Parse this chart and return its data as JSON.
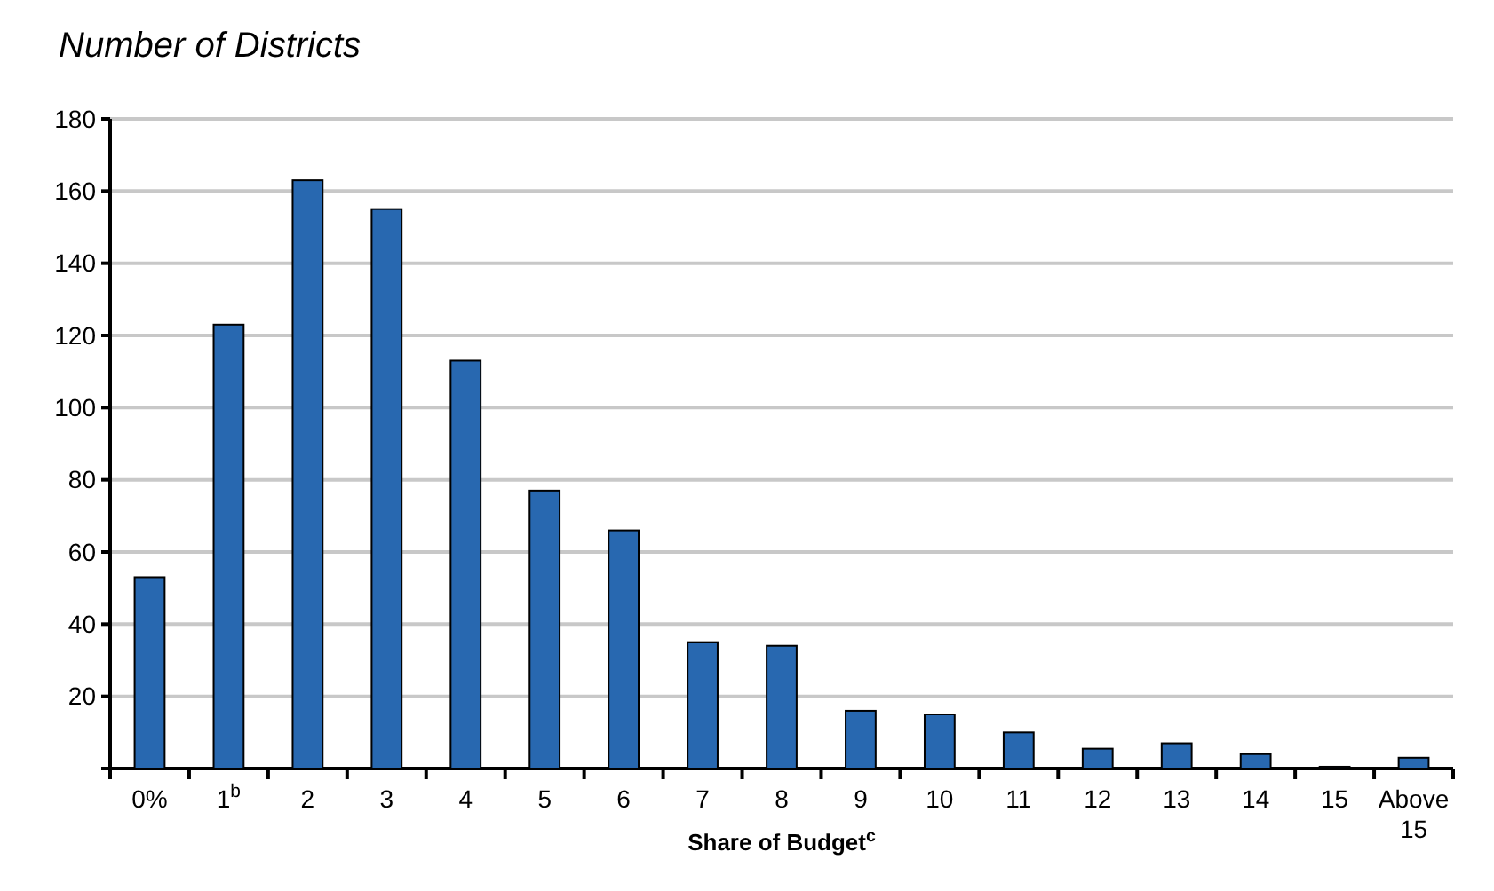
{
  "chart_data": {
    "type": "bar",
    "title": "Number of Districts",
    "xlabel": "Share of Budget$^{c}$",
    "categories": [
      "0%",
      "1$^{b}$",
      "2",
      "3",
      "4",
      "5",
      "6",
      "7",
      "8",
      "9",
      "10",
      "11",
      "12",
      "13",
      "14",
      "15",
      "Above 15"
    ],
    "values": [
      53,
      123,
      163,
      155,
      113,
      77,
      66,
      35,
      34,
      16,
      15,
      10,
      5.5,
      7,
      4,
      0.5,
      3
    ],
    "color": "#2868b0",
    "ylim": [
      0,
      180
    ],
    "yticks": [
      {
        "value": 0,
        "label": null
      },
      20,
      40,
      60,
      80,
      100,
      120,
      140,
      160,
      180
    ],
    "grid": "y"
  }
}
